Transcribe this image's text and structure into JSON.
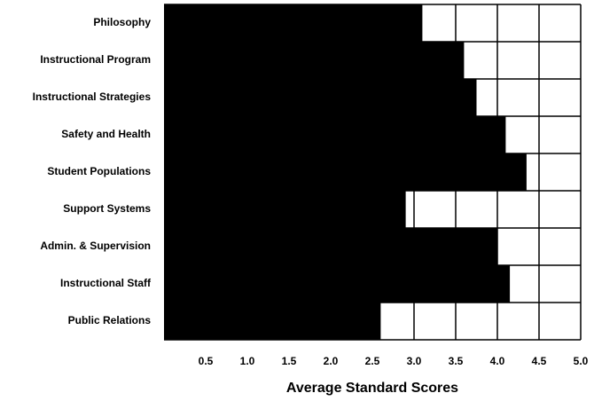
{
  "chart_data": {
    "type": "barh",
    "categories": [
      "Philosophy",
      "Instructional Program",
      "Instructional Strategies",
      "Safety and Health",
      "Student Populations",
      "Support Systems",
      "Admin. & Supervision",
      "Instructional Staff",
      "Public Relations"
    ],
    "values": [
      3.1,
      3.6,
      3.75,
      4.1,
      4.35,
      2.9,
      4.0,
      4.15,
      2.6
    ],
    "color": "#000000",
    "x_label": "Average Standard Scores",
    "xlim": [
      0,
      5
    ],
    "xticks": [
      0.5,
      {
        "value": 1,
        "label": "1.0"
      },
      1.5,
      {
        "value": 2,
        "label": "2.0"
      },
      2.5,
      {
        "value": 3,
        "label": "3.0"
      },
      3.5,
      {
        "value": 4,
        "label": "4.0"
      },
      4.5,
      {
        "value": 5,
        "label": "5.0"
      }
    ],
    "grid": true
  }
}
